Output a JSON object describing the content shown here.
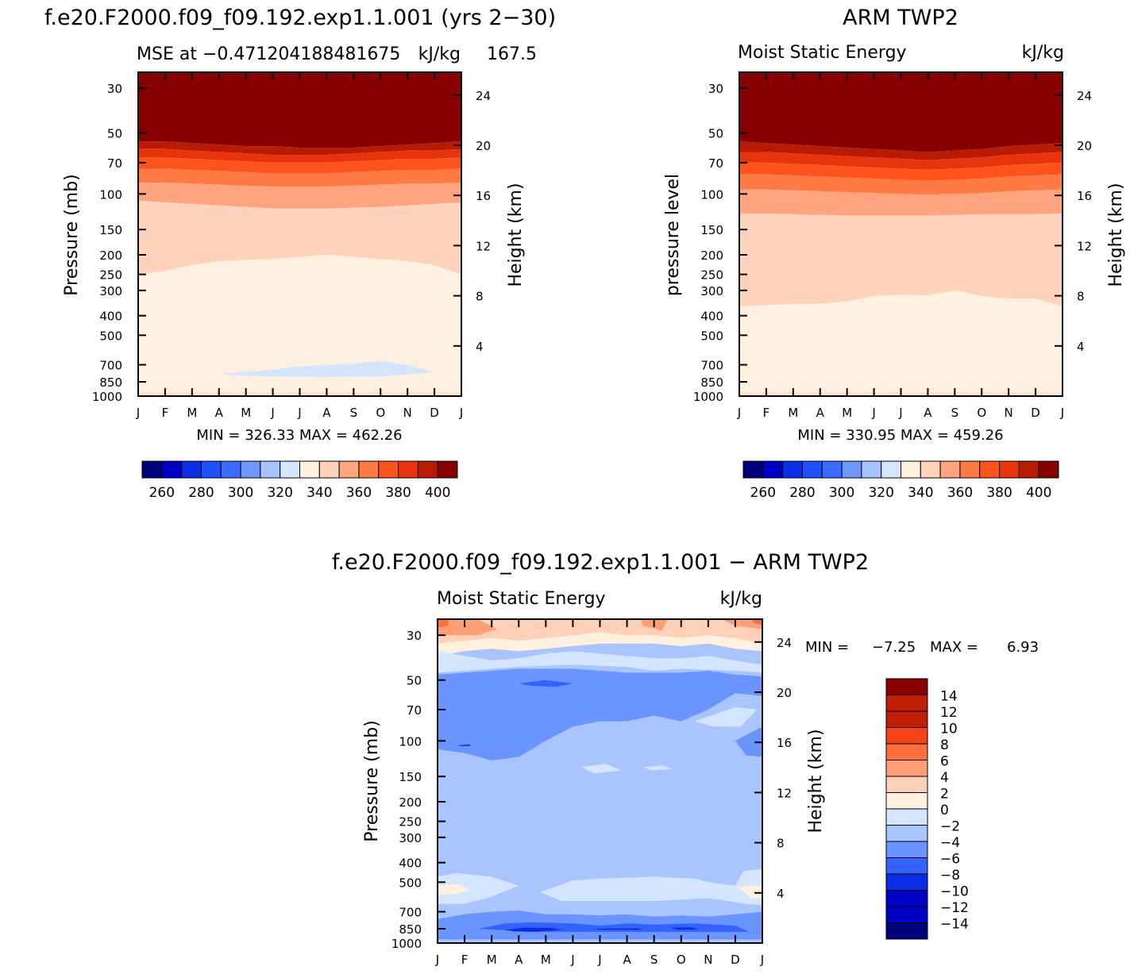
{
  "colors": {
    "mse_scale": [
      "#00007f",
      "#0000c4",
      "#0a2de6",
      "#1f50ff",
      "#3b6cff",
      "#6f95ff",
      "#a7c2ff",
      "#d4e6ff",
      "#fef0e0",
      "#ffd3bb",
      "#ffa47e",
      "#ff7a45",
      "#ff531e",
      "#e8340c",
      "#b81a03",
      "#860000"
    ],
    "diff_scale": [
      "#00007f",
      "#0000c4",
      "#0a2de6",
      "#3462ff",
      "#6a94ff",
      "#a9c4ff",
      "#d4e6ff",
      "#fff0e0",
      "#ffd0b8",
      "#ff9f78",
      "#ff6f3e",
      "#f54216",
      "#c11f05",
      "#890000"
    ]
  },
  "panels": {
    "left": {
      "title": "f.e20.F2000.f09_f09.192.exp1.1.001 (yrs 2−30)",
      "subtitle_left": "MSE at −0.471204188481675",
      "subtitle_overlap": "167.5",
      "subtitle_right": "kJ/kg",
      "ylabel_left": "Pressure (mb)",
      "ylabel_right": "Height (km)",
      "minmax": "MIN = 326.33 MAX = 462.26"
    },
    "right": {
      "title": "ARM TWP2",
      "subtitle_left": "Moist Static Energy",
      "subtitle_right": "kJ/kg",
      "ylabel_left": "pressure level",
      "ylabel_right": "Height (km)",
      "minmax": "MIN = 330.95 MAX = 459.26"
    },
    "bottom": {
      "title": "f.e20.F2000.f09_f09.192.exp1.1.001 − ARM TWP2",
      "subtitle_left": "Moist Static Energy",
      "subtitle_right": "kJ/kg",
      "ylabel_left": "Pressure (mb)",
      "ylabel_right": "Height (km)",
      "minmax_label_min": "MIN =",
      "minmax_value_min": "−7.25",
      "minmax_label_max": "MAX =",
      "minmax_value_max": "6.93"
    }
  },
  "chart_data": [
    {
      "type": "heatmap",
      "title": "f.e20.F2000.f09_f09.192.exp1.1.001 (yrs 2−30)",
      "xlabel": "",
      "ylabel": "Pressure (mb)",
      "y2label": "Height (km)",
      "x_ticks": [
        "J",
        "F",
        "M",
        "A",
        "M",
        "J",
        "J",
        "A",
        "S",
        "O",
        "N",
        "D",
        "J"
      ],
      "y_ticks": [
        30,
        50,
        70,
        100,
        150,
        200,
        250,
        300,
        400,
        500,
        700,
        850,
        1000
      ],
      "y2_ticks": [
        4,
        8,
        12,
        16,
        20,
        24
      ],
      "colorbar_labels": [
        260,
        280,
        300,
        320,
        340,
        360,
        380,
        400
      ],
      "colorbar_levels": [
        250,
        260,
        270,
        280,
        290,
        300,
        310,
        320,
        330,
        340,
        350,
        360,
        370,
        380,
        390,
        400,
        410
      ],
      "contour_boundaries_mb": {
        "400": [
          55,
          55,
          56,
          57,
          58,
          58,
          59,
          59,
          59,
          58,
          57,
          56,
          55
        ],
        "390": [
          60,
          60,
          61,
          62,
          63,
          64,
          64,
          64,
          63,
          62,
          61,
          61,
          60
        ],
        "380": [
          66,
          66,
          67,
          68,
          69,
          70,
          70,
          70,
          69,
          68,
          67,
          67,
          66
        ],
        "370": [
          75,
          75,
          76,
          77,
          78,
          79,
          79,
          79,
          78,
          77,
          76,
          76,
          75
        ],
        "360": [
          88,
          88,
          89,
          90,
          91,
          92,
          92,
          92,
          91,
          90,
          89,
          89,
          88
        ],
        "350": [
          108,
          110,
          112,
          114,
          116,
          118,
          118,
          118,
          117,
          116,
          114,
          112,
          110
        ],
        "340": [
          250,
          240,
          225,
          215,
          212,
          210,
          205,
          200,
          205,
          210,
          215,
          225,
          250
        ],
        "330": [
          null,
          null,
          null,
          null,
          null,
          null,
          null,
          null,
          null,
          null,
          null,
          null,
          null
        ]
      },
      "min": 326.33,
      "max": 462.26
    },
    {
      "type": "heatmap",
      "title": "ARM TWP2",
      "ylabel": "pressure level",
      "y2label": "Height (km)",
      "x_ticks": [
        "J",
        "F",
        "M",
        "A",
        "M",
        "J",
        "J",
        "A",
        "S",
        "O",
        "N",
        "D",
        "J"
      ],
      "y_ticks": [
        30,
        50,
        70,
        100,
        150,
        200,
        250,
        300,
        400,
        500,
        700,
        850,
        1000
      ],
      "y2_ticks": [
        4,
        8,
        12,
        16,
        20,
        24
      ],
      "colorbar_labels": [
        260,
        280,
        300,
        320,
        340,
        360,
        380,
        400
      ],
      "colorbar_levels": [
        250,
        260,
        270,
        280,
        290,
        300,
        310,
        320,
        330,
        340,
        350,
        360,
        370,
        380,
        390,
        400,
        410
      ],
      "contour_boundaries_mb": {
        "400": [
          55,
          56,
          57,
          58,
          59,
          60,
          61,
          62,
          61,
          60,
          58,
          57,
          56
        ],
        "390": [
          62,
          62,
          63,
          64,
          65,
          66,
          67,
          68,
          67,
          66,
          64,
          63,
          62
        ],
        "380": [
          70,
          70,
          71,
          72,
          73,
          74,
          75,
          76,
          75,
          74,
          72,
          71,
          70
        ],
        "370": [
          80,
          80,
          81,
          82,
          83,
          84,
          85,
          86,
          85,
          84,
          82,
          81,
          80
        ],
        "360": [
          95,
          95,
          96,
          97,
          98,
          99,
          100,
          101,
          100,
          99,
          97,
          96,
          95
        ],
        "350": [
          125,
          125,
          126,
          127,
          128,
          128,
          128,
          128,
          127,
          126,
          126,
          126,
          125
        ],
        "340": [
          360,
          355,
          350,
          350,
          340,
          320,
          315,
          318,
          300,
          320,
          330,
          330,
          360
        ]
      },
      "min": 330.95,
      "max": 459.26
    },
    {
      "type": "heatmap",
      "title": "f.e20.F2000.f09_f09.192.exp1.1.001 − ARM TWP2",
      "ylabel": "Pressure (mb)",
      "y2label": "Height (km)",
      "x_ticks": [
        "J",
        "F",
        "M",
        "A",
        "M",
        "J",
        "J",
        "A",
        "S",
        "O",
        "N",
        "D",
        "J"
      ],
      "y_ticks": [
        30,
        50,
        70,
        100,
        150,
        200,
        250,
        300,
        400,
        500,
        700,
        850,
        1000
      ],
      "y2_ticks": [
        4,
        8,
        12,
        16,
        20,
        24
      ],
      "colorbar_labels": [
        14,
        12,
        10,
        8,
        6,
        4,
        2,
        0,
        -2,
        -4,
        -6,
        -8,
        -10,
        -12,
        -14
      ],
      "min": -7.25,
      "max": 6.93
    }
  ]
}
